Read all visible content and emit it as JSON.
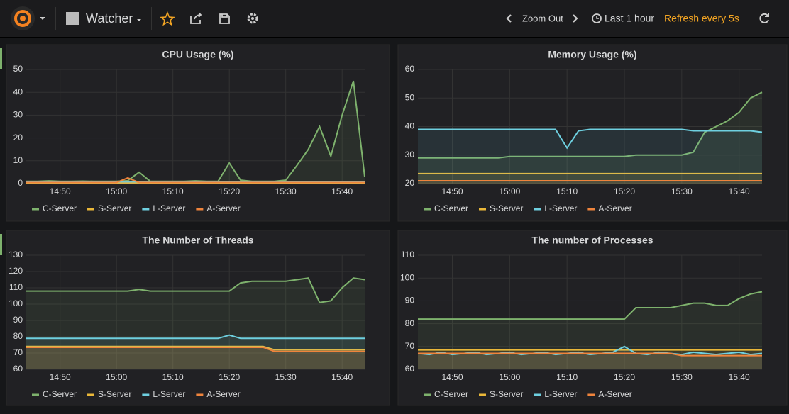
{
  "header": {
    "dashboard": "Watcher",
    "zoom": "Zoom Out",
    "range": "Last 1 hour",
    "refresh": "Refresh every 5s"
  },
  "chart_data": [
    {
      "type": "line",
      "title": "CPU Usage (%)",
      "fill": true,
      "grid": true,
      "x": [
        "14:44",
        "14:46",
        "14:48",
        "14:50",
        "14:52",
        "14:54",
        "14:56",
        "14:58",
        "15:00",
        "15:02",
        "15:04",
        "15:06",
        "15:08",
        "15:10",
        "15:12",
        "15:14",
        "15:16",
        "15:18",
        "15:20",
        "15:22",
        "15:24",
        "15:26",
        "15:28",
        "15:30",
        "15:32",
        "15:34",
        "15:36",
        "15:38",
        "15:40",
        "15:42",
        "15:44"
      ],
      "xlim": [
        "14:44",
        "15:44"
      ],
      "xticks": [
        "14:50",
        "15:00",
        "15:10",
        "15:20",
        "15:30",
        "15:40"
      ],
      "ylim": [
        0,
        50
      ],
      "yticks": [
        0,
        10,
        20,
        30,
        40,
        50
      ],
      "series": [
        {
          "name": "C-Server",
          "color": "#7eb26d",
          "values": [
            1,
            1,
            1.2,
            1,
            1,
            1.1,
            1,
            1,
            1,
            1.3,
            5,
            1,
            1,
            1,
            1,
            1.2,
            1,
            1,
            9,
            1.5,
            1,
            1,
            1,
            1.5,
            8,
            15,
            25,
            12,
            30,
            45,
            3
          ]
        },
        {
          "name": "S-Server",
          "color": "#eab839",
          "values": [
            0.3,
            0.3,
            0.3,
            0.3,
            0.3,
            0.3,
            0.3,
            0.3,
            0.3,
            0.3,
            0.3,
            0.3,
            0.3,
            0.3,
            0.3,
            0.3,
            0.3,
            0.3,
            0.3,
            0.3,
            0.3,
            0.3,
            0.3,
            0.3,
            0.3,
            0.3,
            0.3,
            0.3,
            0.3,
            0.3,
            0.3
          ]
        },
        {
          "name": "L-Server",
          "color": "#6ed0e0",
          "values": [
            0.8,
            0.8,
            0.8,
            0.8,
            0.8,
            0.8,
            0.8,
            0.8,
            0.8,
            0.8,
            0.8,
            0.8,
            0.8,
            0.8,
            0.8,
            0.8,
            0.8,
            0.8,
            0.8,
            0.8,
            0.8,
            0.8,
            0.8,
            0.8,
            0.8,
            0.8,
            0.8,
            0.8,
            0.8,
            0.8,
            0.8
          ]
        },
        {
          "name": "A-Server",
          "color": "#ef843c",
          "values": [
            0.5,
            0.5,
            0.5,
            0.5,
            0.5,
            0.5,
            0.5,
            0.5,
            0.5,
            2.5,
            0.5,
            0.5,
            0.5,
            0.5,
            0.5,
            0.5,
            0.5,
            0.5,
            0.5,
            0.5,
            0.5,
            0.5,
            0.5,
            0.5,
            0.5,
            0.5,
            0.5,
            0.5,
            0.5,
            0.5,
            0.5
          ]
        }
      ]
    },
    {
      "type": "line",
      "title": "Memory Usage (%)",
      "fill": true,
      "grid": true,
      "x": [
        "14:44",
        "14:46",
        "14:48",
        "14:50",
        "14:52",
        "14:54",
        "14:56",
        "14:58",
        "15:00",
        "15:02",
        "15:04",
        "15:06",
        "15:08",
        "15:10",
        "15:12",
        "15:14",
        "15:16",
        "15:18",
        "15:20",
        "15:22",
        "15:24",
        "15:26",
        "15:28",
        "15:30",
        "15:32",
        "15:34",
        "15:36",
        "15:38",
        "15:40",
        "15:42",
        "15:44"
      ],
      "xlim": [
        "14:44",
        "15:44"
      ],
      "xticks": [
        "14:50",
        "15:00",
        "15:10",
        "15:20",
        "15:30",
        "15:40"
      ],
      "ylim": [
        20,
        60
      ],
      "yticks": [
        20,
        30,
        40,
        50,
        60
      ],
      "series": [
        {
          "name": "C-Server",
          "color": "#7eb26d",
          "values": [
            29,
            29,
            29,
            29,
            29,
            29,
            29,
            29,
            29.5,
            29.5,
            29.5,
            29.5,
            29.5,
            29.5,
            29.5,
            29.5,
            29.5,
            29.5,
            29.5,
            30,
            30,
            30,
            30,
            30,
            31,
            38,
            40,
            42,
            45,
            50,
            52
          ]
        },
        {
          "name": "S-Server",
          "color": "#eab839",
          "values": [
            23.5,
            23.5,
            23.5,
            23.5,
            23.5,
            23.5,
            23.5,
            23.5,
            23.5,
            23.5,
            23.5,
            23.5,
            23.5,
            23.5,
            23.5,
            23.5,
            23.5,
            23.5,
            23.5,
            23.5,
            23.5,
            23.5,
            23.5,
            23.5,
            23.5,
            23.5,
            23.5,
            23.5,
            23.5,
            23.5,
            23.5
          ]
        },
        {
          "name": "L-Server",
          "color": "#6ed0e0",
          "values": [
            39,
            39,
            39,
            39,
            39,
            39,
            39,
            39,
            39,
            39,
            39,
            39,
            39,
            32.5,
            38.5,
            39,
            39,
            39,
            39,
            39,
            39,
            39,
            39,
            39,
            38.5,
            38.5,
            38.5,
            38.5,
            38.5,
            38.5,
            38
          ]
        },
        {
          "name": "A-Server",
          "color": "#ef843c",
          "values": [
            21,
            21,
            21,
            21,
            21,
            21,
            21,
            21,
            21,
            21,
            21,
            21,
            21,
            21,
            21,
            21,
            21,
            21,
            21,
            21,
            21,
            21,
            21,
            21,
            21,
            21,
            21,
            21,
            21,
            21,
            21
          ]
        }
      ]
    },
    {
      "type": "line",
      "title": "The Number of Threads",
      "fill": true,
      "grid": true,
      "x": [
        "14:44",
        "14:46",
        "14:48",
        "14:50",
        "14:52",
        "14:54",
        "14:56",
        "14:58",
        "15:00",
        "15:02",
        "15:04",
        "15:06",
        "15:08",
        "15:10",
        "15:12",
        "15:14",
        "15:16",
        "15:18",
        "15:20",
        "15:22",
        "15:24",
        "15:26",
        "15:28",
        "15:30",
        "15:32",
        "15:34",
        "15:36",
        "15:38",
        "15:40",
        "15:42",
        "15:44"
      ],
      "xlim": [
        "14:44",
        "15:44"
      ],
      "xticks": [
        "14:50",
        "15:00",
        "15:10",
        "15:20",
        "15:30",
        "15:40"
      ],
      "ylim": [
        60,
        130
      ],
      "yticks": [
        60,
        70,
        80,
        90,
        100,
        110,
        120,
        130
      ],
      "series": [
        {
          "name": "C-Server",
          "color": "#7eb26d",
          "values": [
            108,
            108,
            108,
            108,
            108,
            108,
            108,
            108,
            108,
            108,
            109,
            108,
            108,
            108,
            108,
            108,
            108,
            108,
            108,
            113,
            114,
            114,
            114,
            114,
            115,
            116,
            101,
            102,
            110,
            116,
            115
          ]
        },
        {
          "name": "S-Server",
          "color": "#eab839",
          "values": [
            74,
            74,
            74,
            74,
            74,
            74,
            74,
            74,
            74,
            74,
            74,
            74,
            74,
            74,
            74,
            74,
            74,
            74,
            74,
            74,
            74,
            74,
            72,
            72,
            72,
            72,
            72,
            72,
            72,
            72,
            72
          ]
        },
        {
          "name": "L-Server",
          "color": "#6ed0e0",
          "values": [
            79,
            79,
            79,
            79,
            79,
            79,
            79,
            79,
            79,
            79,
            79,
            79,
            79,
            79,
            79,
            79,
            79,
            79,
            81,
            79,
            79,
            79,
            79,
            79,
            79,
            79,
            79,
            79,
            79,
            79,
            79
          ]
        },
        {
          "name": "A-Server",
          "color": "#ef843c",
          "values": [
            73.5,
            73.5,
            73.5,
            73.5,
            73.5,
            73.5,
            73.5,
            73.5,
            73.5,
            73.5,
            73.5,
            73.5,
            73.5,
            73.5,
            73.5,
            73.5,
            73.5,
            73.5,
            73.5,
            73.5,
            73.5,
            73.5,
            71,
            71,
            71,
            71,
            71,
            71,
            71,
            71,
            71
          ]
        }
      ]
    },
    {
      "type": "line",
      "title": "The number of Processes",
      "fill": true,
      "grid": true,
      "x": [
        "14:44",
        "14:46",
        "14:48",
        "14:50",
        "14:52",
        "14:54",
        "14:56",
        "14:58",
        "15:00",
        "15:02",
        "15:04",
        "15:06",
        "15:08",
        "15:10",
        "15:12",
        "15:14",
        "15:16",
        "15:18",
        "15:20",
        "15:22",
        "15:24",
        "15:26",
        "15:28",
        "15:30",
        "15:32",
        "15:34",
        "15:36",
        "15:38",
        "15:40",
        "15:42",
        "15:44"
      ],
      "xlim": [
        "14:44",
        "15:44"
      ],
      "xticks": [
        "14:50",
        "15:00",
        "15:10",
        "15:20",
        "15:30",
        "15:40"
      ],
      "ylim": [
        60,
        110
      ],
      "yticks": [
        60,
        70,
        80,
        90,
        100,
        110
      ],
      "series": [
        {
          "name": "C-Server",
          "color": "#7eb26d",
          "values": [
            82,
            82,
            82,
            82,
            82,
            82,
            82,
            82,
            82,
            82,
            82,
            82,
            82,
            82,
            82,
            82,
            82,
            82,
            82,
            87,
            87,
            87,
            87,
            88,
            89,
            89,
            88,
            88,
            91,
            93,
            94
          ]
        },
        {
          "name": "S-Server",
          "color": "#eab839",
          "values": [
            68.5,
            68.5,
            68.5,
            68.5,
            68.5,
            68.5,
            68.5,
            68.5,
            68.5,
            68.5,
            68.5,
            68.5,
            68.5,
            68.5,
            68.5,
            68.5,
            68.5,
            68.5,
            68.5,
            68.5,
            68.5,
            68.5,
            68.5,
            68.5,
            68.5,
            68.5,
            68.5,
            68.5,
            68.5,
            68.5,
            68.5
          ]
        },
        {
          "name": "L-Server",
          "color": "#6ed0e0",
          "values": [
            67,
            66.5,
            67.5,
            66.5,
            67,
            67.5,
            66.5,
            67,
            67.5,
            66.5,
            67,
            67.5,
            66.5,
            67,
            67.5,
            66.5,
            67,
            67.5,
            70,
            67,
            66.5,
            67.5,
            67,
            66.5,
            67.5,
            67,
            66.5,
            67,
            67.5,
            66.5,
            67
          ]
        },
        {
          "name": "A-Server",
          "color": "#ef843c",
          "values": [
            67,
            67,
            67,
            67,
            67,
            67,
            67,
            67,
            67,
            67,
            67,
            67,
            67,
            67,
            67,
            67,
            67,
            67,
            67,
            67,
            67,
            67,
            67,
            66,
            66,
            66,
            66,
            66,
            66,
            66,
            66
          ]
        }
      ]
    }
  ]
}
